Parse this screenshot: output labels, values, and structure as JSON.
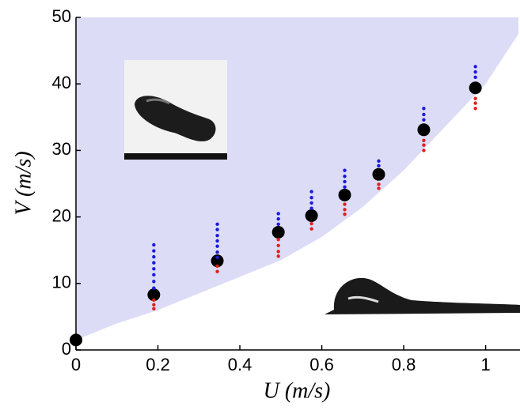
{
  "chart_data": {
    "type": "scatter",
    "xlabel": "U (m/s)",
    "ylabel": "V (m/s)",
    "xlim": [
      0,
      1.08
    ],
    "ylim": [
      0,
      50
    ],
    "xticks": [
      0,
      0.2,
      0.4,
      0.6,
      0.8,
      1
    ],
    "yticks": [
      0,
      10,
      20,
      30,
      40,
      50
    ],
    "region": {
      "color": "#dcdcf6",
      "x": [
        0,
        0.1,
        0.2,
        0.3,
        0.4,
        0.5,
        0.6,
        0.7,
        0.8,
        0.9,
        1.0,
        1.08
      ],
      "y": [
        1.5,
        4.0,
        6.0,
        8.5,
        11.0,
        13.5,
        17.0,
        21.5,
        27.0,
        33.5,
        40.0,
        47.5
      ]
    },
    "series": [
      {
        "color": "#000000",
        "marker": "large",
        "x": [
          0,
          0.19,
          0.345,
          0.494,
          0.575,
          0.656,
          0.739,
          0.849,
          0.975
        ],
        "y": [
          1.5,
          8.3,
          13.4,
          17.7,
          20.2,
          23.3,
          26.4,
          33.1,
          39.4
        ]
      },
      {
        "color": "#1a1adb",
        "marker": "small",
        "x": [
          0.19,
          0.19,
          0.19,
          0.19,
          0.19,
          0.19,
          0.19,
          0.19,
          0.345,
          0.345,
          0.345,
          0.345,
          0.345,
          0.345,
          0.345,
          0.494,
          0.494,
          0.494,
          0.575,
          0.575,
          0.575,
          0.575,
          0.656,
          0.656,
          0.656,
          0.656,
          0.739,
          0.739,
          0.849,
          0.849,
          0.849,
          0.975,
          0.975,
          0.975
        ],
        "y": [
          15.8,
          14.9,
          14.0,
          13.1,
          12.2,
          11.3,
          10.3,
          9.3,
          18.9,
          18.1,
          17.2,
          16.4,
          15.6,
          14.7,
          13.9,
          20.5,
          19.7,
          18.9,
          23.8,
          22.9,
          22.1,
          21.3,
          27.0,
          26.1,
          25.3,
          24.5,
          28.4,
          27.7,
          36.3,
          35.4,
          34.6,
          42.6,
          41.8,
          41.0
        ]
      },
      {
        "color": "#e0201e",
        "marker": "small",
        "x": [
          0.19,
          0.19,
          0.19,
          0.345,
          0.345,
          0.494,
          0.494,
          0.494,
          0.494,
          0.575,
          0.575,
          0.656,
          0.656,
          0.656,
          0.739,
          0.739,
          0.849,
          0.849,
          0.849,
          0.975,
          0.975,
          0.975
        ],
        "y": [
          7.5,
          6.8,
          6.2,
          12.6,
          11.8,
          16.6,
          15.7,
          14.8,
          14.1,
          19.0,
          18.2,
          21.9,
          21.1,
          20.4,
          24.9,
          24.3,
          31.5,
          30.8,
          30.0,
          37.8,
          37.1,
          36.3
        ]
      }
    ]
  }
}
